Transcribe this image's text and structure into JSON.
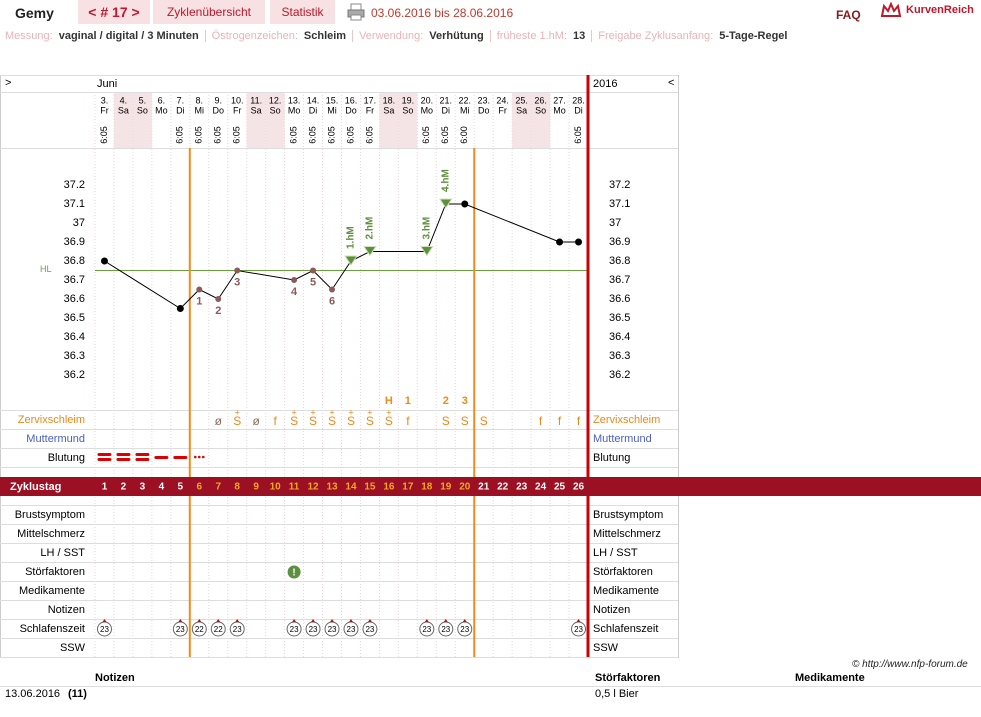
{
  "header": {
    "user": "Gemy",
    "cycle": "< # 17 >",
    "tabs": [
      "Zyklenübersicht",
      "Statistik"
    ],
    "period": "03.06.2016 bis 28.06.2016",
    "faq": "FAQ",
    "brand": "KurvenReich"
  },
  "settings_line": [
    {
      "label": "Messung:",
      "value": "vaginal / digital / 3 Minuten"
    },
    {
      "label": "Östrogenzeichen:",
      "value": "Schleim"
    },
    {
      "label": "Verwendung:",
      "value": "Verhütung"
    },
    {
      "label": "früheste 1.hM:",
      "value": "13"
    },
    {
      "label": "Freigabe Zyklusanfang:",
      "value": "5-Tage-Regel"
    }
  ],
  "chart_data": {
    "type": "line",
    "nav_left": ">",
    "nav_right": "<",
    "month": "Juni",
    "year": "2016",
    "categories": [
      "3.",
      "4.",
      "5.",
      "6.",
      "7.",
      "8.",
      "9.",
      "10.",
      "11.",
      "12.",
      "13.",
      "14.",
      "15.",
      "16.",
      "17.",
      "18.",
      "19.",
      "20.",
      "21.",
      "22.",
      "23.",
      "24.",
      "25.",
      "26.",
      "27.",
      "28."
    ],
    "weekdays": [
      "Fr",
      "Sa",
      "So",
      "Mo",
      "Di",
      "Mi",
      "Do",
      "Fr",
      "Sa",
      "So",
      "Mo",
      "Di",
      "Mi",
      "Do",
      "Fr",
      "Sa",
      "So",
      "Mo",
      "Di",
      "Mi",
      "Do",
      "Fr",
      "Sa",
      "So",
      "Mo",
      "Di"
    ],
    "times": [
      "6:05",
      null,
      null,
      null,
      "6:05",
      "6:05",
      "6:05",
      "6:05",
      null,
      null,
      "6:05",
      "6:05",
      "6:05",
      "6:05",
      "6:05",
      null,
      null,
      "6:05",
      "6:05",
      "6:00",
      null,
      null,
      null,
      null,
      null,
      "6:05"
    ],
    "weekend_columns": [
      1,
      2,
      8,
      9,
      15,
      16,
      22,
      23
    ],
    "cycle_days": [
      1,
      2,
      3,
      4,
      5,
      6,
      7,
      8,
      9,
      10,
      11,
      12,
      13,
      14,
      15,
      16,
      17,
      18,
      19,
      20,
      21,
      22,
      23,
      24,
      25,
      26
    ],
    "xlim": [
      0.5,
      26.5
    ],
    "ylim": [
      36.0,
      37.4
    ],
    "yticks": [
      37.2,
      37.1,
      37,
      36.9,
      36.8,
      36.7,
      36.6,
      36.5,
      36.4,
      36.3,
      36.2
    ],
    "x": [
      1,
      5,
      6,
      7,
      8,
      11,
      12,
      13,
      14,
      15,
      18,
      19,
      20,
      25,
      26
    ],
    "values": [
      36.8,
      36.55,
      36.65,
      36.6,
      36.75,
      36.7,
      36.75,
      36.65,
      36.8,
      36.85,
      36.85,
      37.1,
      37.1,
      36.9,
      36.9
    ],
    "markers": [
      "dot",
      "dot",
      "low",
      "low",
      "low",
      "low",
      "low",
      "low",
      "hm",
      "hm",
      "hm",
      "hm",
      "dot",
      "dot",
      "dot"
    ],
    "point_labels": [
      null,
      null,
      "1",
      "2",
      "3",
      "4",
      "5",
      "6",
      "1.hM",
      "2.hM",
      "3.hM",
      "4.hM",
      null,
      null,
      null
    ],
    "colors": {
      "line": "#000000",
      "low": "#8b5a5a",
      "hm": "#5e8f3c",
      "hl": "#6aa040",
      "fertile": "#f08a1c",
      "end": "#cc0000",
      "bar": "#9b1023",
      "fertile_day": "#f5a623"
    },
    "hl": 36.75,
    "hl_label": "HL",
    "fertile_window": [
      6,
      20
    ],
    "peak_marks": {
      "days": [
        16,
        17,
        19,
        20
      ],
      "labels": [
        "H",
        "1",
        "2",
        "3"
      ]
    },
    "mucus": {
      "days": [
        7,
        8,
        9,
        10,
        11,
        12,
        13,
        14,
        15,
        16,
        17,
        19,
        20,
        21,
        24,
        25,
        26
      ],
      "symbols": [
        "ø",
        "S",
        "ø",
        "f",
        "S",
        "S",
        "S",
        "S",
        "S",
        "S",
        "f",
        "S",
        "S",
        "S",
        "f",
        "f",
        "f"
      ],
      "plus": [
        false,
        true,
        false,
        false,
        true,
        true,
        true,
        true,
        true,
        true,
        false,
        false,
        false,
        false,
        false,
        false,
        false
      ],
      "plus_symbol": "+",
      "colors": [
        "#8b6b5b",
        "#e8891c",
        "#8b6b5b",
        "#e8891c",
        "#e8891c",
        "#e8891c",
        "#e8891c",
        "#e8891c",
        "#e8891c",
        "#e8891c",
        "#e8891c",
        "#e8891c",
        "#e8891c",
        "#e8891c",
        "#e8891c",
        "#e8891c",
        "#e8891c"
      ]
    },
    "rows": [
      {
        "label": "Zervixschleim",
        "color": "#e8891c"
      },
      {
        "label": "Muttermund",
        "color": "#4a5fc1"
      },
      {
        "label": "Blutung",
        "color": "#000000"
      },
      {
        "label": "Brustsymptom",
        "color": "#000000"
      },
      {
        "label": "Mittelschmerz",
        "color": "#000000"
      },
      {
        "label": "LH / SST",
        "color": "#000000"
      },
      {
        "label": "Störfaktoren",
        "color": "#000000"
      },
      {
        "label": "Medikamente",
        "color": "#000000"
      },
      {
        "label": "Notizen",
        "color": "#000000"
      },
      {
        "label": "Schlafenszeit",
        "color": "#000000"
      },
      {
        "label": "SSW",
        "color": "#000000"
      }
    ],
    "cycle_label": "Zyklustag",
    "bleeding": {
      "days": [
        1,
        2,
        3,
        4,
        5,
        6
      ],
      "levels": [
        3,
        3,
        3,
        2,
        2,
        1
      ]
    },
    "disturbance": {
      "days": [
        11
      ],
      "symbol": "!"
    },
    "sleep": {
      "days": [
        1,
        5,
        6,
        7,
        8,
        11,
        12,
        13,
        14,
        15,
        18,
        19,
        20,
        26
      ],
      "values": [
        23,
        23,
        22,
        22,
        23,
        23,
        23,
        23,
        23,
        23,
        23,
        23,
        23,
        23
      ]
    }
  },
  "footer": {
    "copyright": "© http://www.nfp-forum.de",
    "columns": [
      "Notizen",
      "Störfaktoren",
      "Medikamente"
    ],
    "rows": [
      {
        "date": "13.06.2016",
        "day": "(11)",
        "disturbance": "0,5 l Bier"
      }
    ]
  }
}
